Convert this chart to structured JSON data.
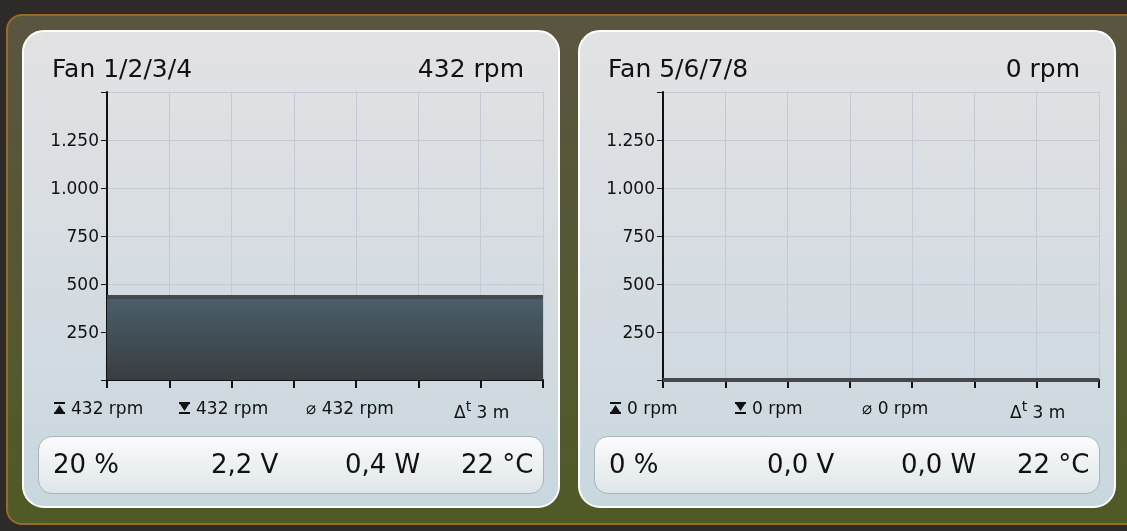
{
  "chart_data": [
    {
      "type": "area",
      "title": "Fan 1/2/3/4",
      "subtitle": "432 rpm",
      "categories": [
        null,
        null,
        null,
        null,
        null,
        null,
        null,
        null
      ],
      "values": [
        432,
        432,
        432,
        432,
        432,
        432,
        432,
        432
      ],
      "color": "#4a5f6c",
      "ylim": [
        0,
        1500
      ],
      "yticks": [
        {
          "value": 0,
          "label": null
        },
        {
          "value": 250,
          "label": "250"
        },
        {
          "value": 500,
          "label": "500"
        },
        {
          "value": 750,
          "label": "750"
        },
        {
          "value": 1000,
          "label": "1.000"
        },
        {
          "value": 1250,
          "label": "1.250"
        },
        {
          "value": 1500,
          "label": null
        }
      ],
      "grid": true,
      "tick_labels": "y",
      "annotations": [
        "432 rpm",
        "432 rpm",
        "⌀ 432 rpm",
        "Δ$^{t}$ 3 m",
        "20 %",
        "2,2 V",
        "0,4 W",
        "22 °C"
      ]
    },
    {
      "type": "line",
      "title": "Fan 5/6/7/8",
      "subtitle": "0 rpm",
      "categories": [
        null,
        null,
        null,
        null,
        null,
        null,
        null,
        null
      ],
      "values": [
        0,
        0,
        0,
        0,
        0,
        0,
        0,
        0
      ],
      "color": "#45494d",
      "ylim": [
        0,
        1500
      ],
      "yticks": [
        {
          "value": 0,
          "label": null
        },
        {
          "value": 250,
          "label": "250"
        },
        {
          "value": 500,
          "label": "500"
        },
        {
          "value": 750,
          "label": "750"
        },
        {
          "value": 1000,
          "label": "1.000"
        },
        {
          "value": 1250,
          "label": "1.250"
        },
        {
          "value": 1500,
          "label": null
        }
      ],
      "grid": true,
      "tick_labels": "y",
      "annotations": [
        "0 rpm",
        "0 rpm",
        "⌀ 0 rpm",
        "Δ$^{t}$ 3 m",
        "0 %",
        "0,0 V",
        "0,0 W",
        "22 °C"
      ]
    }
  ]
}
